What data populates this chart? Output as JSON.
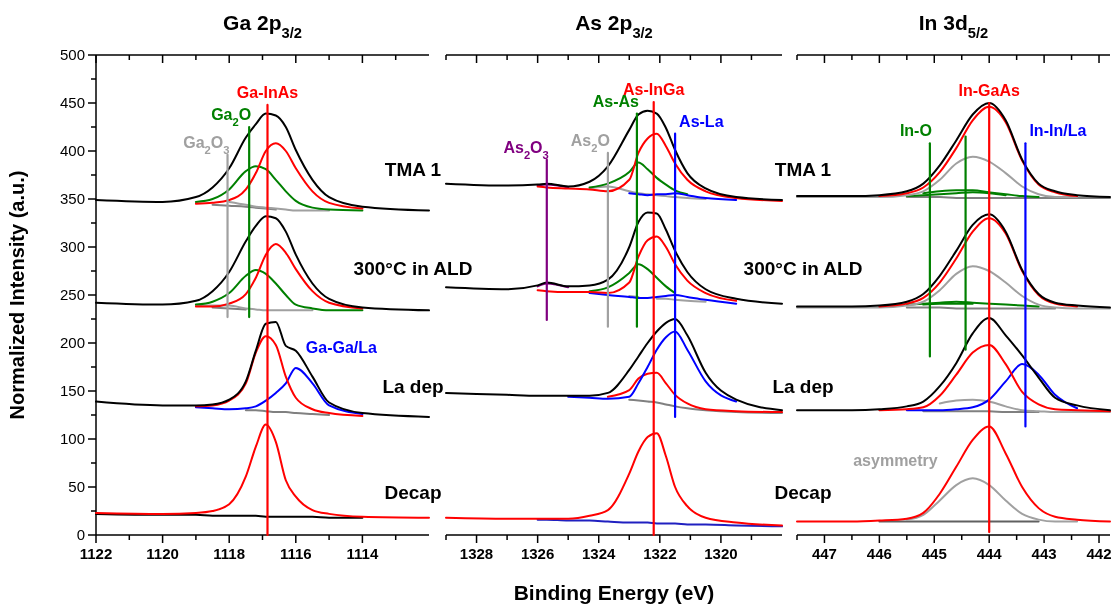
{
  "chart_data": [
    {
      "type": "line",
      "title": "Ga 2p$_{3/2}$",
      "ylabel": "Normalized Intensity (a.u.)",
      "xlim": [
        1122,
        1112
      ],
      "ylim": [
        0,
        500
      ],
      "xticks": [
        1122,
        {
          "value": 1121,
          "label": null
        },
        1120,
        {
          "value": 1119,
          "label": null
        },
        1118,
        {
          "value": 1117,
          "label": null
        },
        1116,
        {
          "value": 1115,
          "label": null
        },
        1114,
        {
          "value": 1113,
          "label": null
        }
      ],
      "yticks": [
        0,
        {
          "value": 25,
          "label": null
        },
        50,
        {
          "value": 75,
          "label": null
        },
        100,
        {
          "value": 125,
          "label": null
        },
        150,
        {
          "value": 175,
          "label": null
        },
        200,
        {
          "value": 225,
          "label": null
        },
        250,
        {
          "value": 275,
          "label": null
        },
        300,
        {
          "value": 325,
          "label": null
        },
        350,
        {
          "value": 375,
          "label": null
        },
        400,
        {
          "value": 425,
          "label": null
        },
        450,
        {
          "value": 475,
          "label": null
        },
        500
      ],
      "x": [
        1122,
        1120,
        1119,
        1118.5,
        1118,
        1117.5,
        1117.2,
        1116.9,
        1116.6,
        1116.3,
        1116,
        1115.5,
        1115,
        1114,
        1112
      ],
      "series": [
        {
          "color": "#808080",
          "values": [
            null,
            null,
            null,
            344,
            343,
            342,
            341,
            340,
            339,
            null,
            null,
            null,
            null,
            null,
            null
          ]
        },
        {
          "color": "#a0a0a0",
          "values": [
            null,
            null,
            null,
            null,
            347,
            344,
            342,
            341,
            340,
            339,
            338,
            338,
            338,
            null,
            null
          ]
        },
        {
          "color": "#008000",
          "values": [
            null,
            null,
            347,
            350,
            360,
            379,
            384,
            381,
            370,
            358,
            348,
            341,
            339,
            338,
            null
          ]
        },
        {
          "color": "#ff0000",
          "values": [
            null,
            null,
            345,
            346,
            349,
            360,
            377,
            400,
            408,
            400,
            382,
            358,
            346,
            340,
            null
          ]
        },
        {
          "color": "#000000",
          "values": [
            349,
            347,
            352,
            362,
            382,
            414,
            428,
            439,
            437,
            425,
            401,
            370,
            352,
            342,
            338
          ]
        },
        {
          "color": "#808080",
          "values": [
            null,
            null,
            null,
            237,
            236,
            235,
            null,
            null,
            null,
            null,
            null,
            null,
            null,
            null,
            null
          ]
        },
        {
          "color": "#a0a0a0",
          "values": [
            null,
            null,
            239,
            239,
            239,
            236,
            235,
            234,
            234,
            234,
            234,
            234,
            null,
            null,
            null
          ]
        },
        {
          "color": "#008000",
          "values": [
            null,
            null,
            240,
            243,
            252,
            270,
            276,
            272,
            262,
            250,
            240,
            236,
            234,
            234,
            null
          ]
        },
        {
          "color": "#ff0000",
          "values": [
            null,
            null,
            238,
            238,
            241,
            251,
            268,
            292,
            303,
            294,
            277,
            254,
            242,
            236,
            null
          ]
        },
        {
          "color": "#000000",
          "values": [
            242,
            240,
            244,
            254,
            274,
            306,
            322,
            332,
            330,
            316,
            292,
            262,
            246,
            237,
            234
          ]
        },
        {
          "color": "#808080",
          "values": [
            null,
            null,
            null,
            null,
            null,
            130,
            130,
            129,
            128,
            128,
            127,
            126,
            125,
            null,
            null
          ]
        },
        {
          "name": "Ga-Ga/La",
          "color": "#0000ff",
          "values": [
            null,
            null,
            133,
            132,
            131,
            132,
            134,
            140,
            148,
            158,
            174,
            158,
            135,
            126,
            null
          ]
        },
        {
          "color": "#ff0000",
          "values": [
            null,
            null,
            134,
            135,
            140,
            158,
            190,
            207,
            198,
            165,
            143,
            131,
            127,
            124,
            null
          ]
        },
        {
          "color": "#000000",
          "values": [
            139,
            135,
            135,
            136,
            141,
            160,
            192,
            220,
            222,
            197,
            192,
            165,
            138,
            127,
            123
          ]
        },
        {
          "color": "#000000",
          "values": [
            22,
            21,
            21,
            20,
            20,
            20,
            20,
            19,
            19,
            19,
            19,
            19,
            18,
            18,
            null
          ]
        },
        {
          "color": "#ff0000",
          "values": [
            23,
            22,
            23,
            25,
            32,
            61,
            92,
            115,
            97,
            57,
            40,
            26,
            22,
            19,
            18
          ]
        },
        {
          "name": "Ga$_{2}$O$_{3}$",
          "color": "#a0a0a0",
          "x": [
            1118.05,
            1118.05
          ],
          "values": [
            227,
            396
          ]
        },
        {
          "name": "Ga$_{2}$O",
          "color": "#008000",
          "x": [
            1117.4,
            1117.4
          ],
          "values": [
            227,
            425
          ]
        },
        {
          "name": "Ga-InAs",
          "color": "#ff0000",
          "x": [
            1116.85,
            1116.85
          ],
          "values": [
            0,
            448
          ]
        }
      ],
      "annotations": [
        "TMA 1",
        "300°C in ALD",
        "La dep",
        "Decap"
      ]
    },
    {
      "type": "line",
      "title": "As 2p$_{3/2}$",
      "xlabel": "Binding Energy (eV)",
      "xlim": [
        1329,
        1318
      ],
      "ylim": [
        0,
        500
      ],
      "tick_labels": "x",
      "xticks": [
        {
          "value": 1329,
          "label": null
        },
        1328,
        {
          "value": 1327,
          "label": null
        },
        1326,
        {
          "value": 1325,
          "label": null
        },
        1324,
        {
          "value": 1323,
          "label": null
        },
        1322,
        {
          "value": 1321,
          "label": null
        },
        1320,
        {
          "value": 1319,
          "label": null
        }
      ],
      "x": [
        1329,
        1327,
        1326,
        1325.7,
        1325,
        1324.3,
        1323.7,
        1323,
        1322.7,
        1322.4,
        1322.1,
        1321.8,
        1321.5,
        1321.1,
        1320.5,
        1319.5,
        1318
      ],
      "series": [
        {
          "color": "#800080",
          "values": [
            null,
            null,
            364,
            365,
            362,
            null,
            null,
            null,
            null,
            null,
            null,
            null,
            null,
            null,
            null,
            null,
            null
          ]
        },
        {
          "color": "#a0a0a0",
          "values": [
            null,
            null,
            null,
            null,
            null,
            361,
            363,
            358,
            356,
            355,
            354,
            353,
            352,
            351,
            350,
            null,
            null
          ]
        },
        {
          "color": "#008000",
          "values": [
            null,
            null,
            null,
            null,
            null,
            362,
            366,
            378,
            388,
            381,
            372,
            365,
            359,
            355,
            null,
            null,
            null
          ]
        },
        {
          "color": "#0000ff",
          "values": [
            null,
            null,
            null,
            null,
            null,
            null,
            null,
            356,
            355,
            354,
            355,
            355,
            356,
            354,
            351,
            349,
            null
          ]
        },
        {
          "color": "#ff0000",
          "values": [
            null,
            null,
            363,
            362,
            361,
            360,
            358,
            370,
            398,
            413,
            418,
            405,
            387,
            370,
            358,
            351,
            348
          ]
        },
        {
          "color": "#000000",
          "values": [
            366,
            364,
            365,
            366,
            363,
            368,
            384,
            422,
            438,
            442,
            439,
            424,
            401,
            377,
            361,
            352,
            349
          ]
        },
        {
          "color": "#800080",
          "values": [
            null,
            null,
            259,
            262,
            258,
            null,
            null,
            null,
            null,
            null,
            null,
            null,
            null,
            null,
            null,
            null,
            null
          ]
        },
        {
          "color": "#a0a0a0",
          "values": [
            null,
            null,
            null,
            null,
            null,
            null,
            null,
            249,
            248,
            null,
            246,
            246,
            245,
            244,
            243,
            null,
            null
          ]
        },
        {
          "color": "#008000",
          "values": [
            null,
            null,
            null,
            null,
            null,
            254,
            258,
            273,
            282,
            277,
            268,
            259,
            252,
            null,
            null,
            null,
            null
          ]
        },
        {
          "color": "#0000ff",
          "values": [
            null,
            null,
            null,
            null,
            null,
            252,
            250,
            248,
            247,
            247,
            248,
            249,
            250,
            248,
            245,
            241,
            null
          ]
        },
        {
          "color": "#ff0000",
          "values": [
            null,
            null,
            255,
            254,
            253,
            253,
            252,
            263,
            290,
            307,
            311,
            300,
            282,
            265,
            252,
            244,
            null
          ]
        },
        {
          "color": "#000000",
          "values": [
            258,
            256,
            260,
            263,
            259,
            260,
            266,
            300,
            326,
            336,
            335,
            318,
            296,
            274,
            256,
            246,
            241
          ]
        },
        {
          "color": "#808080",
          "values": [
            null,
            null,
            null,
            null,
            null,
            null,
            null,
            141,
            140,
            139,
            138,
            136,
            134,
            132,
            130,
            128,
            127
          ]
        },
        {
          "color": "#ff0000",
          "values": [
            null,
            null,
            null,
            null,
            null,
            null,
            144,
            151,
            163,
            168,
            169,
            158,
            146,
            137,
            131,
            129,
            128
          ]
        },
        {
          "color": "#0000ff",
          "values": [
            null,
            null,
            null,
            null,
            144,
            143,
            142,
            144,
            158,
            175,
            193,
            206,
            212,
            193,
            160,
            139,
            null
          ]
        },
        {
          "color": "#000000",
          "values": [
            148,
            146,
            145,
            145,
            145,
            145,
            148,
            172,
            186,
            200,
            212,
            221,
            225,
            208,
            169,
            141,
            130
          ]
        },
        {
          "color": "#2020c0",
          "values": [
            null,
            null,
            16,
            16,
            15,
            15,
            14,
            13,
            13,
            13,
            12,
            12,
            12,
            11,
            11,
            10,
            9
          ]
        },
        {
          "color": "#ff0000",
          "values": [
            18,
            17,
            17,
            17,
            17,
            20,
            26,
            64,
            87,
            102,
            106,
            82,
            50,
            30,
            18,
            13,
            10
          ]
        },
        {
          "name": "As$_{2}$O$_{3}$",
          "color": "#800080",
          "x": [
            1325.7,
            1325.7
          ],
          "values": [
            224,
            391
          ]
        },
        {
          "name": "As$_{2}$O",
          "color": "#a0a0a0",
          "x": [
            1323.7,
            1323.7
          ],
          "values": [
            217,
            398
          ]
        },
        {
          "name": "As-As",
          "color": "#008000",
          "x": [
            1322.75,
            1322.75
          ],
          "values": [
            217,
            439
          ]
        },
        {
          "name": "As-InGa",
          "color": "#ff0000",
          "x": [
            1322.2,
            1322.2
          ],
          "values": [
            0,
            451
          ]
        },
        {
          "name": "As-La",
          "color": "#0000ff",
          "x": [
            1321.5,
            1321.5
          ],
          "values": [
            123,
            418
          ]
        }
      ]
    },
    {
      "type": "line",
      "title": "In 3d$_{5/2}$",
      "xlim": [
        447.5,
        441.8
      ],
      "ylim": [
        0,
        500
      ],
      "tick_labels": "x",
      "xticks": [
        {
          "value": 447.5,
          "label": null
        },
        447,
        {
          "value": 446.5,
          "label": null
        },
        446,
        {
          "value": 445.5,
          "label": null
        },
        445,
        {
          "value": 444.5,
          "label": null
        },
        444,
        {
          "value": 443.5,
          "label": null
        },
        443,
        {
          "value": 442.5,
          "label": null
        },
        442
      ],
      "x": [
        447.5,
        446.5,
        446,
        445.5,
        445.2,
        444.9,
        444.6,
        444.3,
        444.0,
        443.7,
        443.4,
        443.1,
        442.8,
        442.4,
        441.8
      ],
      "series": [
        {
          "color": "#808080",
          "values": [
            null,
            null,
            null,
            352,
            352,
            352,
            351,
            351,
            351,
            351,
            351,
            351,
            351,
            351,
            351
          ]
        },
        {
          "color": "#008000",
          "values": [
            null,
            null,
            null,
            353,
            354,
            355,
            356,
            357,
            356,
            354,
            null,
            null,
            null,
            null,
            null
          ]
        },
        {
          "color": "#008000",
          "values": [
            null,
            null,
            null,
            null,
            356,
            358,
            359,
            359,
            357,
            355,
            353,
            352,
            null,
            null,
            null
          ]
        },
        {
          "color": "#a0a0a0",
          "values": [
            352,
            352,
            352,
            354,
            358,
            370,
            387,
            394,
            389,
            377,
            363,
            355,
            352,
            352,
            null
          ]
        },
        {
          "color": "#ff0000",
          "values": [
            null,
            null,
            353,
            356,
            362,
            378,
            403,
            432,
            446,
            430,
            390,
            365,
            357,
            353,
            null
          ]
        },
        {
          "color": "#000000",
          "values": [
            353,
            353,
            354,
            358,
            366,
            385,
            411,
            438,
            450,
            432,
            391,
            366,
            358,
            354,
            352
          ]
        },
        {
          "color": "#808080",
          "values": [
            null,
            null,
            null,
            237,
            237,
            237,
            236,
            236,
            236,
            236,
            236,
            236,
            236,
            null,
            null
          ]
        },
        {
          "color": "#008000",
          "values": [
            null,
            null,
            null,
            null,
            240,
            241,
            241,
            241,
            null,
            null,
            null,
            null,
            null,
            null,
            null
          ]
        },
        {
          "color": "#008000",
          "values": [
            null,
            null,
            null,
            240,
            241,
            242,
            243,
            242,
            241,
            240,
            239,
            238,
            null,
            null,
            null
          ]
        },
        {
          "color": "#a0a0a0",
          "values": [
            237,
            237,
            237,
            239,
            243,
            255,
            272,
            280,
            275,
            263,
            249,
            240,
            237,
            236,
            236
          ]
        },
        {
          "color": "#ff0000",
          "values": [
            null,
            null,
            238,
            241,
            247,
            263,
            288,
            316,
            330,
            314,
            275,
            250,
            241,
            238,
            null
          ]
        },
        {
          "color": "#000000",
          "values": [
            238,
            238,
            239,
            243,
            251,
            270,
            296,
            323,
            334,
            316,
            276,
            251,
            242,
            239,
            237
          ]
        },
        {
          "color": "#808080",
          "values": [
            null,
            null,
            null,
            null,
            129,
            129,
            129,
            129,
            129,
            128,
            128,
            128,
            null,
            null,
            null
          ]
        },
        {
          "color": "#a0a0a0",
          "values": [
            null,
            null,
            null,
            null,
            null,
            137,
            140,
            141,
            139,
            134,
            130,
            129,
            128,
            128,
            128
          ]
        },
        {
          "color": "#0000ff",
          "values": [
            null,
            null,
            null,
            130,
            130,
            130,
            131,
            133,
            141,
            160,
            178,
            167,
            146,
            132,
            null
          ]
        },
        {
          "color": "#ff0000",
          "values": [
            null,
            null,
            130,
            131,
            133,
            145,
            167,
            190,
            198,
            178,
            149,
            136,
            131,
            130,
            129
          ]
        },
        {
          "color": "#000000",
          "values": [
            130,
            130,
            131,
            134,
            139,
            155,
            179,
            210,
            226,
            208,
            187,
            164,
            143,
            135,
            130
          ]
        },
        {
          "color": "#606060",
          "values": [
            null,
            null,
            14,
            14,
            14,
            14,
            14,
            14,
            14,
            14,
            14,
            14,
            null,
            null,
            null
          ]
        },
        {
          "name": "asymmetry",
          "color": "#a0a0a0",
          "values": [
            null,
            null,
            null,
            16,
            21,
            36,
            52,
            59,
            52,
            36,
            22,
            16,
            14,
            14,
            null
          ]
        },
        {
          "color": "#ff0000",
          "values": [
            14,
            14,
            15,
            17,
            23,
            43,
            71,
            99,
            113,
            85,
            50,
            28,
            19,
            16,
            14
          ]
        },
        {
          "name": "In-O",
          "color": "#008000",
          "x": [
            445.08,
            445.08
          ],
          "values": [
            186,
            408
          ]
        },
        {
          "color": "#008000",
          "x": [
            444.43,
            444.43
          ],
          "values": [
            193,
            415
          ]
        },
        {
          "name": "In-GaAs",
          "color": "#ff0000",
          "x": [
            444.0,
            444.0
          ],
          "values": [
            3,
            450
          ]
        },
        {
          "name": "In-In/La",
          "color": "#0000ff",
          "x": [
            443.34,
            443.34
          ],
          "values": [
            113,
            408
          ]
        }
      ],
      "annotations": [
        "TMA 1",
        "300°C in ALD",
        "La dep",
        "Decap"
      ]
    }
  ]
}
